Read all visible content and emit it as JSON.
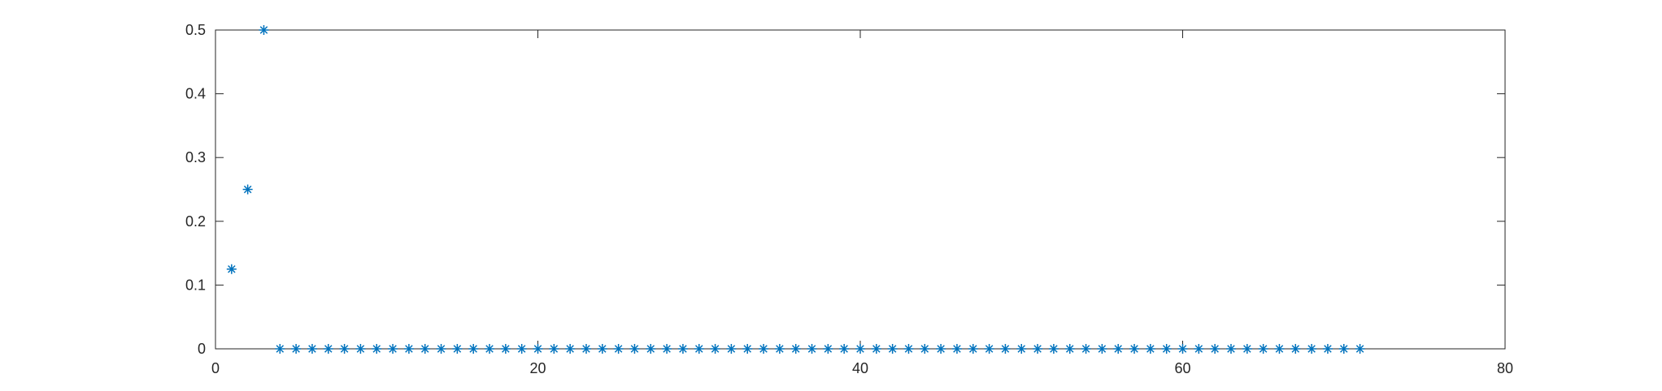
{
  "chart_data": {
    "type": "scatter",
    "marker": "asterisk",
    "title": "",
    "xlabel": "",
    "ylabel": "",
    "xlim": [
      0,
      80
    ],
    "ylim": [
      0,
      0.5
    ],
    "xticks": [
      0,
      20,
      40,
      60,
      80
    ],
    "yticks": [
      0,
      0.1,
      0.2,
      0.3,
      0.4,
      0.5
    ],
    "xtick_labels": [
      "0",
      "20",
      "40",
      "60",
      "80"
    ],
    "ytick_labels": [
      "0",
      "0.1",
      "0.2",
      "0.3",
      "0.4",
      "0.5"
    ],
    "grid": false,
    "box": true,
    "color": "#0072BD",
    "series": [
      {
        "x": [
          1,
          2,
          3,
          4,
          5,
          6,
          7,
          8,
          9,
          10,
          11,
          12,
          13,
          14,
          15,
          16,
          17,
          18,
          19,
          20,
          21,
          22,
          23,
          24,
          25,
          26,
          27,
          28,
          29,
          30,
          31,
          32,
          33,
          34,
          35,
          36,
          37,
          38,
          39,
          40,
          41,
          42,
          43,
          44,
          45,
          46,
          47,
          48,
          49,
          50,
          51,
          52,
          53,
          54,
          55,
          56,
          57,
          58,
          59,
          60,
          61,
          62,
          63,
          64,
          65,
          66,
          67,
          68,
          69,
          70,
          71
        ],
        "y": [
          0.125,
          0.25,
          0.5,
          0,
          0,
          0,
          0,
          0,
          0,
          0,
          0,
          0,
          0,
          0,
          0,
          0,
          0,
          0,
          0,
          0,
          0,
          0,
          0,
          0,
          0,
          0,
          0,
          0,
          0,
          0,
          0,
          0,
          0,
          0,
          0,
          0,
          0,
          0,
          0,
          0,
          0,
          0,
          0,
          0,
          0,
          0,
          0,
          0,
          0,
          0,
          0,
          0,
          0,
          0,
          0,
          0,
          0,
          0,
          0,
          0,
          0,
          0,
          0,
          0,
          0,
          0,
          0,
          0,
          0,
          0,
          0
        ]
      }
    ]
  }
}
